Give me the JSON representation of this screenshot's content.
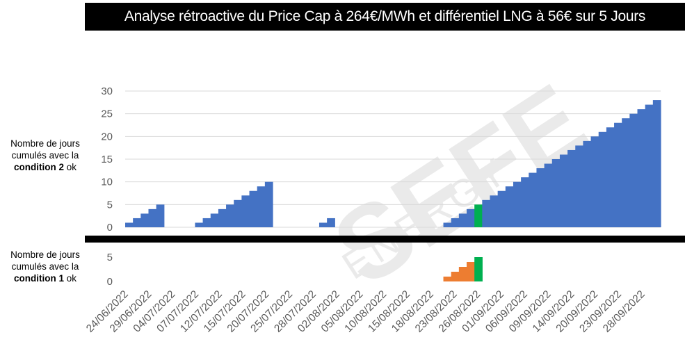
{
  "title": "Analyse rétroactive du Price Cap à 264€/MWh et différentiel LNG à 56€ sur 5 Jours",
  "watermark": {
    "brand": "SEFE",
    "sub": "ENERGY"
  },
  "y_label_top": {
    "line1": "Nombre de jours",
    "line2": "cumulés avec la",
    "bold": "condition 2",
    "tail": " ok"
  },
  "y_label_bottom": {
    "line1": "Nombre de jours",
    "line2": "cumulés avec la",
    "bold": "condition 1",
    "tail": " ok"
  },
  "colors": {
    "blue": "#4472C4",
    "orange": "#ED7D31",
    "green": "#00B050",
    "grid": "#d9d9d9",
    "axis_text": "#595959"
  },
  "chart_data": [
    {
      "type": "bar",
      "panel": "top",
      "ylim": [
        0,
        30
      ],
      "yticks": [
        0,
        5,
        10,
        15,
        20,
        25,
        30
      ],
      "grid": true,
      "x_tick_labels": [
        "24/06/2022",
        "29/06/2022",
        "04/07/2022",
        "07/07/2022",
        "12/07/2022",
        "15/07/2022",
        "20/07/2022",
        "25/07/2022",
        "28/07/2022",
        "02/08/2022",
        "05/08/2022",
        "10/08/2022",
        "15/08/2022",
        "18/08/2022",
        "23/08/2022",
        "26/08/2022",
        "01/09/2022",
        "06/09/2022",
        "09/09/2022",
        "14/09/2022",
        "20/09/2022",
        "23/09/2022",
        "28/09/2022"
      ],
      "values": [
        1,
        2,
        3,
        4,
        5,
        0,
        0,
        0,
        0,
        1,
        2,
        3,
        4,
        5,
        6,
        7,
        8,
        9,
        10,
        0,
        0,
        0,
        0,
        0,
        0,
        1,
        2,
        0,
        0,
        0,
        0,
        0,
        0,
        0,
        0,
        0,
        0,
        0,
        0,
        0,
        0,
        1,
        2,
        3,
        4,
        5,
        6,
        7,
        8,
        9,
        10,
        11,
        12,
        13,
        14,
        15,
        16,
        17,
        18,
        19,
        20,
        21,
        22,
        23,
        24,
        25,
        26,
        27,
        28
      ],
      "highlight_index": 45
    },
    {
      "type": "bar",
      "panel": "bottom",
      "ylim": [
        0,
        5
      ],
      "yticks": [
        0,
        5
      ],
      "grid": false,
      "values": [
        0,
        0,
        0,
        0,
        0,
        0,
        0,
        0,
        0,
        0,
        0,
        0,
        0,
        0,
        0,
        0,
        0,
        0,
        0,
        0,
        0,
        0,
        0,
        0,
        0,
        0,
        0,
        0,
        0,
        0,
        0,
        0,
        0,
        0,
        0,
        0,
        0,
        0,
        0,
        0,
        0,
        1,
        2,
        3,
        4,
        5,
        0,
        0,
        0,
        0,
        0,
        0,
        0,
        0,
        0,
        0,
        0,
        0,
        0,
        0,
        0,
        0,
        0,
        0,
        0,
        0,
        0,
        0,
        0
      ],
      "highlight_index": 45
    }
  ]
}
